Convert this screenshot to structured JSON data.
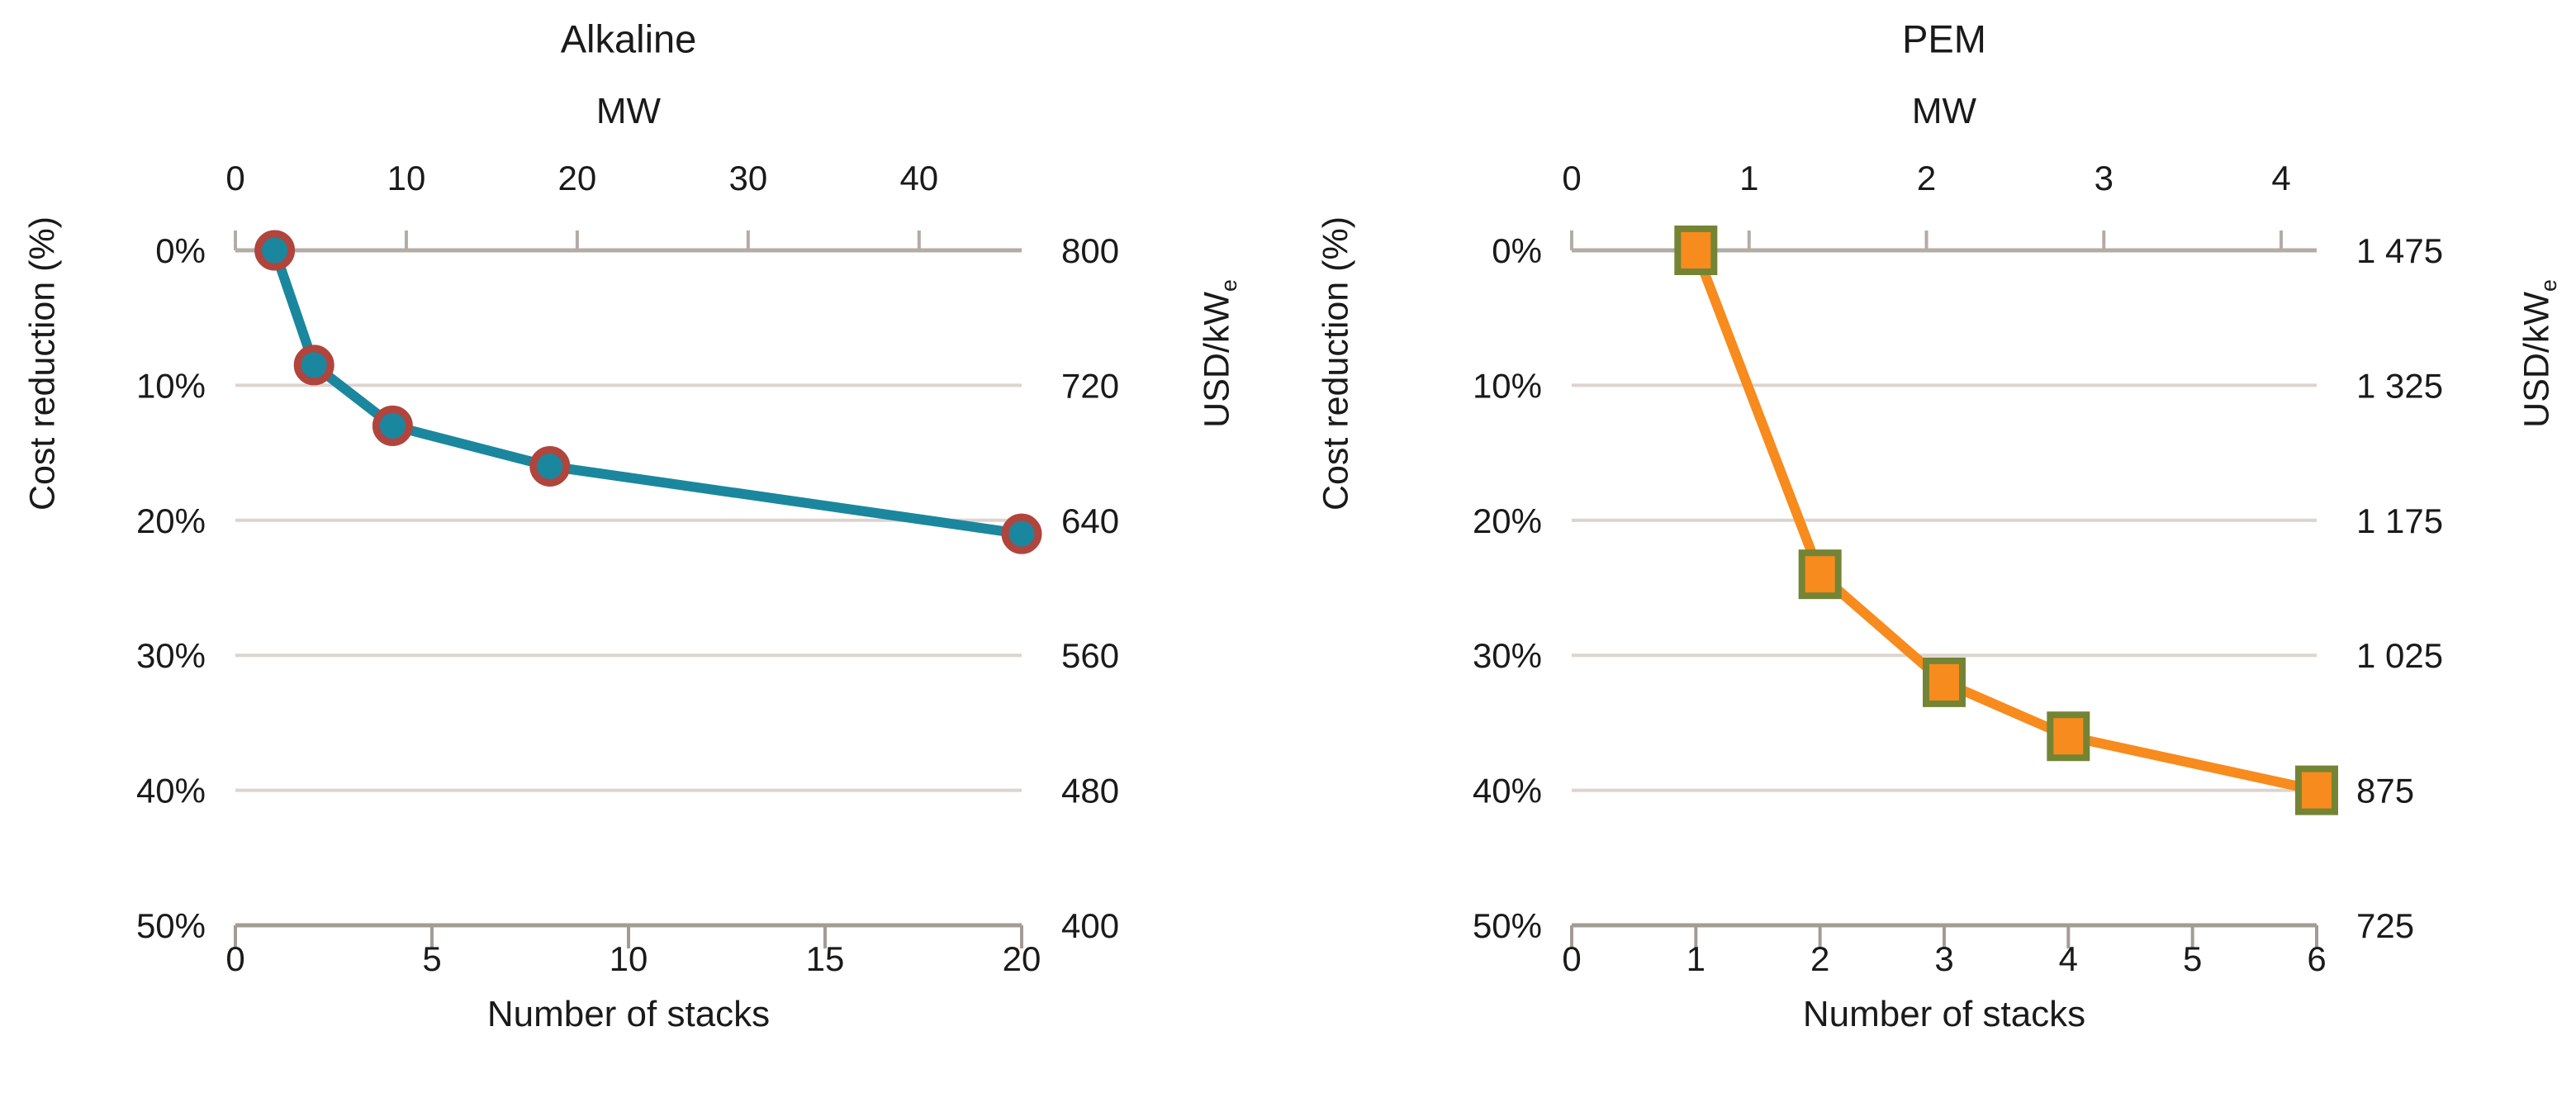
{
  "figure": {
    "background": "#ffffff",
    "text_color": "#1a1a1a",
    "gridline_color": "#ddd4cf",
    "top_axis_color": "#b3aca5",
    "bottom_axis_color": "#a39c95"
  },
  "chart_data": [
    {
      "type": "line",
      "title": "Alkaline",
      "top_axis": {
        "label": "MW",
        "ticks": [
          "0",
          "10",
          "20",
          "30",
          "40"
        ],
        "tick_values": [
          0,
          10,
          20,
          30,
          40
        ],
        "range": [
          0,
          46
        ]
      },
      "bottom_axis": {
        "label": "Number of stacks",
        "ticks": [
          "0",
          "5",
          "10",
          "15",
          "20"
        ],
        "tick_values": [
          0,
          5,
          10,
          15,
          20
        ],
        "range": [
          0,
          20
        ]
      },
      "left_axis": {
        "label": "Cost reduction (%)",
        "tick_labels": [
          "0%",
          "10%",
          "20%",
          "30%",
          "40%",
          "50%"
        ],
        "tick_values": [
          0,
          10,
          20,
          30,
          40,
          50
        ],
        "range": [
          0,
          50
        ]
      },
      "right_axis": {
        "label": "USD/kW",
        "label_subscript": "e",
        "tick_labels": [
          "800",
          "720",
          "640",
          "560",
          "480",
          "400"
        ]
      },
      "grid": true,
      "legend": false,
      "series": {
        "name": "Alkaline",
        "line_color": "#1a879e",
        "marker": "circle",
        "marker_fill": "#1a879e",
        "marker_edge_color": "#b0453e",
        "points": [
          {
            "stacks": 1,
            "mw": 2.3,
            "cost_reduction_pct": 0,
            "usd_per_kwe": 800
          },
          {
            "stacks": 2,
            "mw": 4.6,
            "cost_reduction_pct": 8.5,
            "usd_per_kwe": 732
          },
          {
            "stacks": 4,
            "mw": 9.2,
            "cost_reduction_pct": 13,
            "usd_per_kwe": 696
          },
          {
            "stacks": 8,
            "mw": 18.4,
            "cost_reduction_pct": 16,
            "usd_per_kwe": 672
          },
          {
            "stacks": 20,
            "mw": 46,
            "cost_reduction_pct": 21,
            "usd_per_kwe": 632
          }
        ]
      }
    },
    {
      "type": "line",
      "title": "PEM",
      "top_axis": {
        "label": "MW",
        "ticks": [
          "0",
          "1",
          "2",
          "3",
          "4"
        ],
        "tick_values": [
          0,
          1,
          2,
          3,
          4
        ],
        "range": [
          0,
          4.2
        ]
      },
      "bottom_axis": {
        "label": "Number of stacks",
        "ticks": [
          "0",
          "1",
          "2",
          "3",
          "4",
          "5",
          "6"
        ],
        "tick_values": [
          0,
          1,
          2,
          3,
          4,
          5,
          6
        ],
        "range": [
          0,
          6
        ]
      },
      "left_axis": {
        "label": "Cost reduction (%)",
        "tick_labels": [
          "0%",
          "10%",
          "20%",
          "30%",
          "40%",
          "50%"
        ],
        "tick_values": [
          0,
          10,
          20,
          30,
          40,
          50
        ],
        "range": [
          0,
          50
        ]
      },
      "right_axis": {
        "label": "USD/kW",
        "label_subscript": "e",
        "tick_labels": [
          "1 475",
          "1 325",
          "1 175",
          "1 025",
          "875",
          "725"
        ]
      },
      "grid": true,
      "legend": false,
      "series": {
        "name": "PEM",
        "line_color": "#f78b1d",
        "marker": "square",
        "marker_fill": "#f78b1d",
        "marker_edge_color": "#748435",
        "points": [
          {
            "stacks": 1,
            "mw": 0.7,
            "cost_reduction_pct": 0,
            "usd_per_kwe": 1475
          },
          {
            "stacks": 2,
            "mw": 1.4,
            "cost_reduction_pct": 24,
            "usd_per_kwe": 1115
          },
          {
            "stacks": 3,
            "mw": 2.1,
            "cost_reduction_pct": 32,
            "usd_per_kwe": 995
          },
          {
            "stacks": 4,
            "mw": 2.8,
            "cost_reduction_pct": 36,
            "usd_per_kwe": 935
          },
          {
            "stacks": 6,
            "mw": 4.2,
            "cost_reduction_pct": 40,
            "usd_per_kwe": 875
          }
        ]
      }
    }
  ]
}
